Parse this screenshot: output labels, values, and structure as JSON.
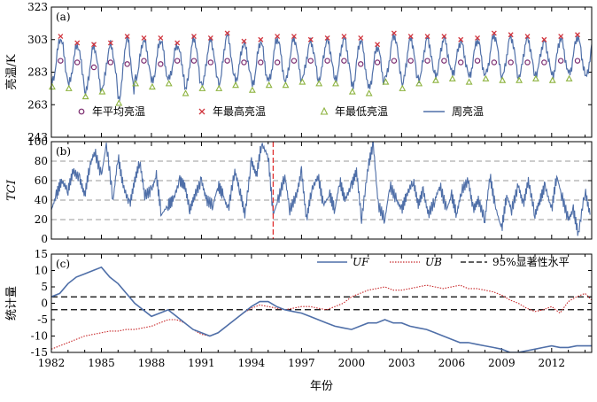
{
  "chart_data": [
    {
      "id": "a",
      "type": "line",
      "panel_label": "(a)",
      "ylabel": "亮温/K",
      "ylim": [
        243,
        323
      ],
      "yticks": [
        243,
        263,
        283,
        303,
        323
      ],
      "xlim": [
        1982,
        2014.4
      ],
      "colors": {
        "weekly": "#4f6fa8",
        "mean": "#7a2a6e",
        "max": "#d0343d",
        "min": "#8db33f"
      },
      "legend": [
        {
          "key": "mean",
          "label": "年平均亮温",
          "marker": "circle"
        },
        {
          "key": "max",
          "label": "年最高亮温",
          "marker": "cross"
        },
        {
          "key": "min",
          "label": "年最低亮温",
          "marker": "triangle"
        },
        {
          "key": "weekly",
          "label": "周亮温",
          "marker": "line"
        }
      ],
      "years": [
        1982,
        1983,
        1984,
        1985,
        1986,
        1987,
        1988,
        1989,
        1990,
        1991,
        1992,
        1993,
        1994,
        1995,
        1996,
        1997,
        1998,
        1999,
        2000,
        2001,
        2002,
        2003,
        2004,
        2005,
        2006,
        2007,
        2008,
        2009,
        2010,
        2011,
        2012,
        2013,
        2014
      ],
      "annual_mean": [
        290,
        289,
        286,
        289,
        288,
        290,
        288,
        290,
        290,
        289,
        290,
        289,
        289,
        289,
        290,
        290,
        290,
        290,
        288,
        289,
        290,
        290,
        290,
        290,
        289,
        290,
        289,
        289,
        289,
        289,
        290,
        290,
        290
      ],
      "annual_max": [
        305,
        301,
        300,
        301,
        305,
        304,
        304,
        301,
        305,
        304,
        307,
        302,
        303,
        305,
        305,
        303,
        304,
        305,
        304,
        300,
        307,
        305,
        305,
        305,
        303,
        304,
        307,
        306,
        305,
        303,
        305,
        306,
        305
      ],
      "annual_min": [
        274,
        273,
        268,
        271,
        264,
        276,
        274,
        276,
        270,
        273,
        273,
        275,
        272,
        275,
        275,
        277,
        276,
        276,
        271,
        270,
        277,
        273,
        276,
        278,
        279,
        277,
        279,
        278,
        278,
        279,
        278,
        279,
        277
      ]
    },
    {
      "id": "b",
      "type": "line",
      "panel_label": "(b)",
      "ylabel": "TCI",
      "ylim": [
        0,
        100
      ],
      "yticks": [
        0,
        20,
        40,
        60,
        80,
        100
      ],
      "xlim": [
        1982,
        2014.4
      ],
      "colors": {
        "line": "#4f6fa8",
        "marker": "#e03030",
        "grid": "#999999"
      },
      "marker_year": 1995.3,
      "series_x": [
        1982.0,
        1982.3,
        1982.6,
        1983.0,
        1983.3,
        1983.7,
        1984.0,
        1984.3,
        1984.6,
        1985.0,
        1985.3,
        1985.7,
        1986.0,
        1986.3,
        1986.7,
        1987.0,
        1987.3,
        1987.6,
        1988.0,
        1988.3,
        1988.6,
        1989.0,
        1989.3,
        1989.7,
        1990.0,
        1990.3,
        1990.6,
        1991.0,
        1991.3,
        1991.7,
        1992.0,
        1992.3,
        1992.6,
        1993.0,
        1993.3,
        1993.6,
        1994.0,
        1994.3,
        1994.6,
        1995.0,
        1995.3,
        1995.6,
        1996.0,
        1996.3,
        1996.7,
        1997.0,
        1997.3,
        1997.6,
        1998.0,
        1998.3,
        1998.7,
        1999.0,
        1999.3,
        1999.6,
        2000.0,
        2000.3,
        2000.6,
        2001.0,
        2001.3,
        2001.6,
        2002.0,
        2002.3,
        2002.7,
        2003.0,
        2003.3,
        2003.7,
        2004.0,
        2004.3,
        2004.6,
        2005.0,
        2005.3,
        2005.7,
        2006.0,
        2006.3,
        2006.6,
        2007.0,
        2007.3,
        2007.6,
        2008.0,
        2008.3,
        2008.6,
        2009.0,
        2009.3,
        2009.6,
        2010.0,
        2010.3,
        2010.6,
        2011.0,
        2011.3,
        2011.6,
        2012.0,
        2012.3,
        2012.6,
        2013.0,
        2013.3,
        2013.6,
        2014.0,
        2014.3
      ],
      "series_y": [
        30,
        45,
        60,
        50,
        70,
        62,
        45,
        75,
        90,
        65,
        98,
        40,
        85,
        55,
        35,
        60,
        80,
        45,
        50,
        65,
        25,
        35,
        40,
        60,
        55,
        30,
        45,
        60,
        40,
        35,
        55,
        45,
        30,
        70,
        50,
        25,
        80,
        65,
        98,
        85,
        25,
        40,
        65,
        30,
        45,
        70,
        20,
        50,
        65,
        35,
        45,
        30,
        60,
        40,
        55,
        70,
        20,
        75,
        98,
        35,
        20,
        55,
        40,
        30,
        45,
        60,
        35,
        50,
        25,
        40,
        55,
        30,
        45,
        25,
        50,
        60,
        30,
        40,
        20,
        65,
        35,
        10,
        45,
        30,
        55,
        35,
        60,
        25,
        40,
        55,
        30,
        65,
        45,
        20,
        30,
        5,
        50,
        25
      ]
    },
    {
      "id": "c",
      "type": "line",
      "panel_label": "(c)",
      "ylabel": "统计量",
      "xlabel": "年份",
      "ylim": [
        -15,
        15
      ],
      "yticks": [
        -15,
        -10,
        -5,
        0,
        5,
        10,
        15
      ],
      "xlim": [
        1982,
        2014.4
      ],
      "xticks": [
        1982,
        1985,
        1988,
        1991,
        1994,
        1997,
        2000,
        2003,
        2006,
        2009,
        2012
      ],
      "colors": {
        "uf": "#4f6fa8",
        "ub": "#c8282a",
        "threshold": "#000000"
      },
      "threshold": 1.96,
      "legend": [
        {
          "key": "uf",
          "label": "UF",
          "style": "solid"
        },
        {
          "key": "ub",
          "label": "UB",
          "style": "dotted"
        },
        {
          "key": "threshold",
          "label": "95%显著性水平",
          "style": "dashed"
        }
      ],
      "uf": {
        "x": [
          1982.0,
          1982.5,
          1983.0,
          1983.5,
          1984.0,
          1984.5,
          1985.0,
          1985.5,
          1986.0,
          1986.5,
          1987.0,
          1987.5,
          1988.0,
          1988.5,
          1989.0,
          1989.5,
          1990.0,
          1990.5,
          1991.0,
          1991.5,
          1992.0,
          1992.5,
          1993.0,
          1993.5,
          1994.0,
          1994.5,
          1995.0,
          1995.5,
          1996.0,
          1996.5,
          1997.0,
          1997.5,
          1998.0,
          1998.5,
          1999.0,
          1999.5,
          2000.0,
          2000.5,
          2001.0,
          2001.5,
          2002.0,
          2002.5,
          2003.0,
          2003.5,
          2004.0,
          2004.5,
          2005.0,
          2005.5,
          2006.0,
          2006.5,
          2007.0,
          2007.5,
          2008.0,
          2008.5,
          2009.0,
          2009.5,
          2010.0,
          2010.5,
          2011.0,
          2011.5,
          2012.0,
          2012.5,
          2013.0,
          2013.5,
          2014.0,
          2014.4
        ],
        "y": [
          2,
          3,
          6,
          8,
          9,
          10,
          11,
          8,
          6,
          3,
          0,
          -2,
          -4,
          -3,
          -2,
          -4,
          -6,
          -8,
          -9,
          -10,
          -9,
          -7,
          -5,
          -3,
          -1,
          0.5,
          0.5,
          -1,
          -2,
          -2.5,
          -3,
          -4,
          -5,
          -6,
          -7,
          -7.5,
          -8,
          -7,
          -6,
          -6,
          -5,
          -6,
          -6,
          -7,
          -7.5,
          -8,
          -9,
          -10,
          -11,
          -12,
          -12,
          -12.5,
          -13,
          -13.5,
          -14,
          -15,
          -15,
          -14.5,
          -14,
          -13.5,
          -13,
          -13.5,
          -13.5,
          -13,
          -13,
          -13
        ]
      },
      "ub": {
        "x": [
          1982.0,
          1982.5,
          1983.0,
          1983.5,
          1984.0,
          1984.5,
          1985.0,
          1985.5,
          1986.0,
          1986.5,
          1987.0,
          1987.5,
          1988.0,
          1988.5,
          1989.0,
          1989.5,
          1990.0,
          1990.5,
          1991.0,
          1991.5,
          1992.0,
          1992.5,
          1993.0,
          1993.5,
          1994.0,
          1994.5,
          1995.0,
          1995.5,
          1996.0,
          1996.5,
          1997.0,
          1997.5,
          1998.0,
          1998.5,
          1999.0,
          1999.5,
          2000.0,
          2000.5,
          2001.0,
          2001.5,
          2002.0,
          2002.5,
          2003.0,
          2003.5,
          2004.0,
          2004.5,
          2005.0,
          2005.5,
          2006.0,
          2006.5,
          2007.0,
          2007.5,
          2008.0,
          2008.5,
          2009.0,
          2009.5,
          2010.0,
          2010.5,
          2011.0,
          2011.5,
          2012.0,
          2012.5,
          2013.0,
          2013.5,
          2014.0,
          2014.4
        ],
        "y": [
          -14,
          -13,
          -12,
          -11,
          -10,
          -9.5,
          -9,
          -8.5,
          -8.5,
          -8,
          -8,
          -7.5,
          -7,
          -6,
          -5,
          -5,
          -6,
          -8,
          -9.5,
          -10,
          -9,
          -7,
          -5,
          -3,
          -1.5,
          -0.5,
          -1,
          -1.5,
          -2,
          -1.5,
          -1,
          -1,
          -1.5,
          -2,
          -1,
          0,
          2,
          3,
          4,
          4.5,
          5,
          4,
          4,
          4.5,
          5,
          5.5,
          5,
          4.5,
          5,
          5.5,
          4.5,
          4.5,
          4,
          3.5,
          2.5,
          1,
          0,
          -1.5,
          -2.5,
          -2,
          -1,
          -3,
          0.5,
          2,
          3,
          1
        ]
      }
    }
  ]
}
